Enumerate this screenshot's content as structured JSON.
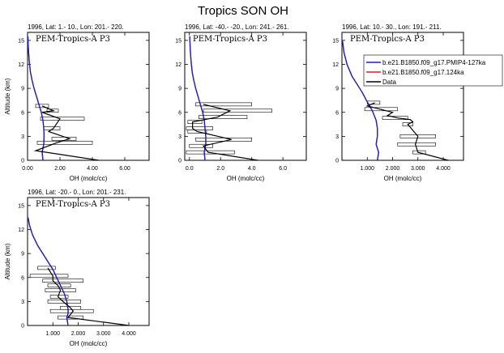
{
  "figure_title": "Tropics SON OH",
  "colors": {
    "model1": "#1f1fbf",
    "model2": "#e01b1b",
    "data": "#000000",
    "bar_fill": "#ffffff",
    "bar_stroke": "#000000"
  },
  "legend": [
    {
      "label": "b.e21.B1850.f09_g17.PMIP4-127ka",
      "color": "#1f1fbf"
    },
    {
      "label": "b.e21.B1850.f09_g17.124ka",
      "color": "#e01b1b"
    },
    {
      "label": "Data",
      "color": "#000000"
    }
  ],
  "chart_data": [
    {
      "type": "line",
      "title": "1996, Lat: 1.- 10., Lon: 201.- 220.",
      "inset_label": "PEM-Tropics-A P3",
      "xlabel": "OH (molc/cc)",
      "ylabel": "Altitude (km)",
      "xlim": [
        0,
        7.5
      ],
      "ylim": [
        0,
        16
      ],
      "xticks": [
        0,
        2,
        4,
        6
      ],
      "xtick_labels": [
        "0.00",
        "2.00",
        "4.00",
        "6.00"
      ],
      "yticks": [
        0,
        3,
        6,
        9,
        12,
        15
      ],
      "model_profile": {
        "x": [
          0.02,
          0.05,
          0.1,
          0.18,
          0.28,
          0.4,
          0.55,
          0.7,
          0.85,
          0.95,
          1.0,
          1.02,
          1.0,
          0.95,
          0.9,
          0.95
        ],
        "y": [
          15.5,
          14,
          12.5,
          11,
          10,
          9,
          8,
          7,
          6,
          5,
          4,
          3,
          2,
          1.5,
          1,
          0
        ]
      },
      "data_profile": {
        "x": [
          4.4,
          0.5,
          1.8,
          2.6,
          1.3,
          1.6,
          2.0,
          0.9,
          1.6,
          0.9
        ],
        "y": [
          0,
          1.2,
          2.2,
          2.7,
          3.6,
          4.0,
          5.2,
          6.0,
          6.2,
          6.8
        ]
      },
      "error_bars": [
        {
          "y": 2.2,
          "xmin": 0.6,
          "xmax": 4.0
        },
        {
          "y": 2.7,
          "xmin": 1.5,
          "xmax": 3.0
        },
        {
          "y": 4.0,
          "xmin": 1.0,
          "xmax": 2.0
        },
        {
          "y": 5.2,
          "xmin": 0.8,
          "xmax": 3.5
        },
        {
          "y": 6.2,
          "xmin": 1.2,
          "xmax": 1.9
        },
        {
          "y": 6.8,
          "xmin": 0.5,
          "xmax": 1.3
        }
      ]
    },
    {
      "type": "line",
      "title": "1996, Lat: -40.- -20., Lon: 241.- 261.",
      "inset_label": "PEM-Tropics-A P3",
      "xlabel": "OH (molc/cc)",
      "ylabel": "",
      "xlim": [
        -0.3,
        7.5
      ],
      "ylim": [
        0,
        16
      ],
      "xticks": [
        0,
        2,
        4,
        6
      ],
      "xtick_labels": [
        "0.0",
        "2.0",
        "4.0",
        "6.0"
      ],
      "yticks": [
        0,
        3,
        6,
        9,
        12,
        15
      ],
      "model_profile": {
        "x": [
          0.02,
          0.05,
          0.1,
          0.18,
          0.28,
          0.4,
          0.55,
          0.7,
          0.85,
          0.95,
          1.0,
          1.05,
          1.05,
          1.0,
          0.95,
          1.0
        ],
        "y": [
          15.5,
          14,
          12.5,
          11,
          10,
          9,
          8,
          7,
          6,
          5,
          4,
          3,
          2,
          1.5,
          1,
          0
        ]
      },
      "data_profile": {
        "x": [
          4.4,
          1.2,
          0.9,
          2.7,
          0.5,
          0.2,
          0.2,
          1.8,
          2.6,
          0.9
        ],
        "y": [
          0,
          1.0,
          1.8,
          2.6,
          3.6,
          4.0,
          4.8,
          5.4,
          6.2,
          7.0
        ]
      },
      "error_bars": [
        {
          "y": 1.0,
          "xmin": -0.2,
          "xmax": 2.9
        },
        {
          "y": 1.8,
          "xmin": 0.0,
          "xmax": 1.5
        },
        {
          "y": 2.6,
          "xmin": 0.4,
          "xmax": 4.0
        },
        {
          "y": 3.6,
          "xmin": -0.1,
          "xmax": 1.1
        },
        {
          "y": 4.0,
          "xmin": -0.2,
          "xmax": 1.5
        },
        {
          "y": 4.8,
          "xmin": -0.1,
          "xmax": 0.8
        },
        {
          "y": 5.4,
          "xmin": 0.6,
          "xmax": 3.7
        },
        {
          "y": 6.2,
          "xmin": 0.9,
          "xmax": 5.3
        },
        {
          "y": 7.0,
          "xmin": 0.4,
          "xmax": 4.0
        }
      ]
    },
    {
      "type": "line",
      "title": "1996, Lat: 10.- 30., Lon: 191.- 211.",
      "inset_label": "PEM-Tropics-A P3",
      "xlabel": "OH (molc/cc)",
      "ylabel": "",
      "xlim": [
        0,
        4.8
      ],
      "ylim": [
        0,
        16
      ],
      "xticks": [
        1,
        2,
        3,
        4
      ],
      "xtick_labels": [
        "1.000",
        "2.000",
        "3.000",
        "4.000"
      ],
      "yticks": [
        0,
        3,
        6,
        9,
        12,
        15
      ],
      "model_profile": {
        "x": [
          0.02,
          0.08,
          0.2,
          0.4,
          0.6,
          0.8,
          1.0,
          1.2,
          1.35,
          1.4,
          1.4,
          1.35,
          1.4,
          1.45,
          1.4
        ],
        "y": [
          15,
          13.5,
          12,
          10.5,
          9.5,
          8.5,
          7.3,
          6.2,
          5,
          4,
          3,
          2,
          1.5,
          1,
          0
        ]
      },
      "data_profile": {
        "x": [
          4.2,
          3.0,
          2.9,
          3.0,
          2.6,
          2.8,
          2.7,
          2.2,
          1.8,
          2.0,
          1.5,
          1.0,
          1.3
        ],
        "y": [
          0,
          1.0,
          2.0,
          3.0,
          4.5,
          4.8,
          5.1,
          5.3,
          5.6,
          6.0,
          6.4,
          6.8,
          7.2
        ]
      },
      "error_bars": [
        {
          "y": 1.0,
          "xmin": 2.8,
          "xmax": 3.3
        },
        {
          "y": 2.0,
          "xmin": 2.2,
          "xmax": 3.7
        },
        {
          "y": 3.0,
          "xmin": 2.3,
          "xmax": 3.7
        },
        {
          "y": 4.5,
          "xmin": 2.4,
          "xmax": 2.8
        },
        {
          "y": 5.3,
          "xmin": 1.6,
          "xmax": 2.6
        },
        {
          "y": 6.4,
          "xmin": 0.9,
          "xmax": 2.2
        },
        {
          "y": 7.2,
          "xmin": 1.0,
          "xmax": 1.5
        }
      ]
    },
    {
      "type": "line",
      "title": "1996, Lat: -20.- 0., Lon: 201.- 231.",
      "inset_label": "PEM-Tropics-A P3",
      "xlabel": "OH (molc/cc)",
      "ylabel": "Altitude (km)",
      "xlim": [
        0,
        4.8
      ],
      "ylim": [
        0,
        16
      ],
      "xticks": [
        1,
        2,
        3,
        4
      ],
      "xtick_labels": [
        "1.000",
        "2.000",
        "3.000",
        "4.000"
      ],
      "yticks": [
        0,
        3,
        6,
        9,
        12,
        15
      ],
      "model_profile": {
        "x": [
          0.02,
          0.08,
          0.2,
          0.4,
          0.6,
          0.8,
          1.0,
          1.15,
          1.3,
          1.45,
          1.55,
          1.6,
          1.6,
          1.55,
          1.6
        ],
        "y": [
          13.5,
          12.5,
          11.3,
          10,
          9,
          8,
          7,
          6,
          5,
          4,
          3,
          2,
          1.5,
          1,
          0
        ]
      },
      "data_profile": {
        "x": [
          4.0,
          1.6,
          1.8,
          1.7,
          1.4,
          1.2,
          1.3,
          1.2,
          1.0,
          1.0,
          0.8
        ],
        "y": [
          0,
          1.0,
          1.8,
          2.2,
          3.0,
          3.6,
          4.4,
          5.0,
          5.6,
          6.2,
          7.2
        ]
      },
      "error_bars": [
        {
          "y": 1.0,
          "xmin": 1.2,
          "xmax": 2.2
        },
        {
          "y": 1.8,
          "xmin": 0.9,
          "xmax": 2.6
        },
        {
          "y": 2.2,
          "xmin": 1.3,
          "xmax": 2.1
        },
        {
          "y": 3.0,
          "xmin": 0.8,
          "xmax": 2.1
        },
        {
          "y": 3.6,
          "xmin": 0.9,
          "xmax": 1.6
        },
        {
          "y": 4.4,
          "xmin": 0.7,
          "xmax": 1.9
        },
        {
          "y": 5.0,
          "xmin": 0.8,
          "xmax": 1.7
        },
        {
          "y": 5.6,
          "xmin": 0.6,
          "xmax": 2.2
        },
        {
          "y": 6.2,
          "xmin": 0.1,
          "xmax": 1.6
        },
        {
          "y": 7.2,
          "xmin": 0.4,
          "xmax": 1.1
        }
      ]
    }
  ]
}
